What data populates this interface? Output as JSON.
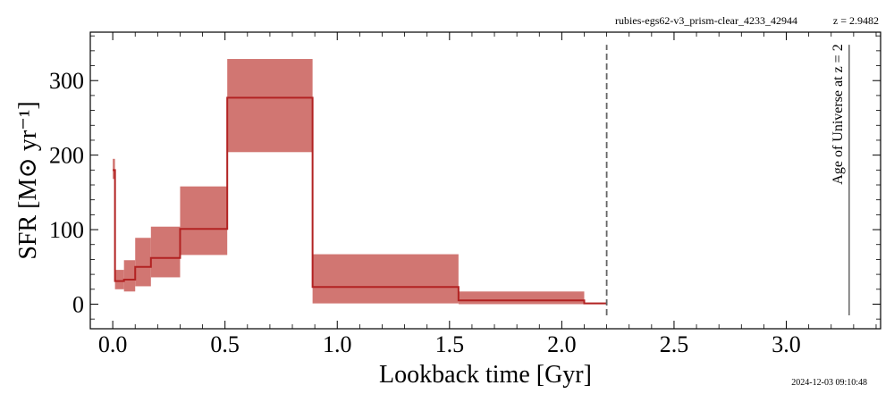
{
  "header": {
    "object_id": "rubies-egs62-v3_prism-clear_4233_42944",
    "redshift_label": "z = 2.9482"
  },
  "footer": {
    "timestamp": "2024-12-03 09:10:48"
  },
  "colors": {
    "band": "#d17672",
    "line": "#b22222",
    "vline": "#666666"
  },
  "chart_data": {
    "type": "line",
    "xlabel": "Lookback time [Gyr]",
    "ylabel": "SFR [M⊙ yr⁻¹]",
    "xlim": [
      -0.1,
      3.42
    ],
    "ylim": [
      -33,
      365
    ],
    "xticks": [
      0.0,
      0.5,
      1.0,
      1.5,
      2.0,
      2.5,
      3.0
    ],
    "xtick_labels": [
      "0.0",
      "0.5",
      "1.0",
      "1.5",
      "2.0",
      "2.5",
      "3.0"
    ],
    "yticks": [
      0,
      100,
      200,
      300
    ],
    "ytick_labels": [
      "0",
      "100",
      "200",
      "300"
    ],
    "grid": false,
    "series": [
      {
        "kind": "band",
        "bins": [
          {
            "x0": 0.0,
            "x1": 0.01,
            "lo": 168,
            "hi": 195
          },
          {
            "x0": 0.01,
            "x1": 0.05,
            "lo": 20,
            "hi": 46
          },
          {
            "x0": 0.05,
            "x1": 0.1,
            "lo": 17,
            "hi": 59
          },
          {
            "x0": 0.1,
            "x1": 0.17,
            "lo": 24,
            "hi": 89
          },
          {
            "x0": 0.17,
            "x1": 0.3,
            "lo": 36,
            "hi": 104
          },
          {
            "x0": 0.3,
            "x1": 0.51,
            "lo": 66,
            "hi": 158
          },
          {
            "x0": 0.51,
            "x1": 0.89,
            "lo": 204,
            "hi": 329
          },
          {
            "x0": 0.89,
            "x1": 1.54,
            "lo": 1,
            "hi": 67
          },
          {
            "x0": 1.54,
            "x1": 2.1,
            "lo": 0,
            "hi": 17
          },
          {
            "x0": 2.1,
            "x1": 2.2,
            "lo": 0,
            "hi": 2
          }
        ]
      },
      {
        "kind": "step",
        "bins": [
          {
            "x0": 0.0,
            "x1": 0.01,
            "y": 180
          },
          {
            "x0": 0.01,
            "x1": 0.05,
            "y": 31
          },
          {
            "x0": 0.05,
            "x1": 0.1,
            "y": 33
          },
          {
            "x0": 0.1,
            "x1": 0.17,
            "y": 50
          },
          {
            "x0": 0.17,
            "x1": 0.3,
            "y": 62
          },
          {
            "x0": 0.3,
            "x1": 0.51,
            "y": 101
          },
          {
            "x0": 0.51,
            "x1": 0.89,
            "y": 277
          },
          {
            "x0": 0.89,
            "x1": 1.54,
            "y": 23
          },
          {
            "x0": 1.54,
            "x1": 2.1,
            "y": 5
          },
          {
            "x0": 2.1,
            "x1": 2.2,
            "y": 1
          }
        ]
      }
    ],
    "annotations": {
      "dashed_vline_x": 2.2,
      "dashed_vline_y": [
        -15,
        348
      ],
      "solid_vline_x": 3.28,
      "solid_vline_y": [
        -15,
        348
      ],
      "age_label": "Age of Universe at z = 2"
    }
  }
}
